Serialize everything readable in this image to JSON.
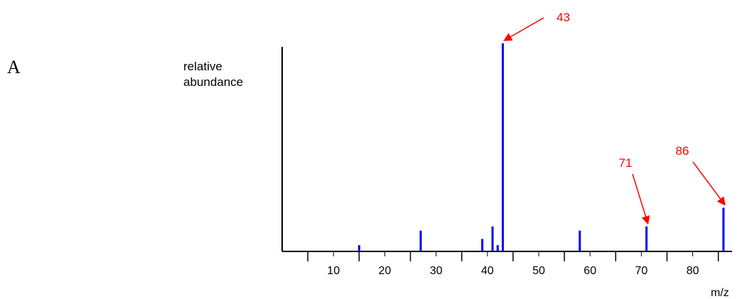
{
  "panel_label": "A",
  "chart_data": {
    "type": "bar",
    "title": "",
    "ylabel_lines": [
      "relative",
      "abundance"
    ],
    "xlabel": "m/z",
    "xlim": [
      0,
      86
    ],
    "ylim": [
      0,
      100
    ],
    "xticks": [
      10,
      20,
      30,
      40,
      50,
      60,
      70,
      80
    ],
    "x_minor_ticks": [
      5,
      15,
      25,
      35,
      45,
      55,
      65,
      75,
      85
    ],
    "x": [
      15,
      27,
      39,
      41,
      42,
      43,
      58,
      71,
      86
    ],
    "values": [
      3,
      10,
      6,
      12,
      3,
      100,
      10,
      12,
      21
    ],
    "annotations": [
      {
        "text": "43",
        "x": 43
      },
      {
        "text": "71",
        "x": 71
      },
      {
        "text": "86",
        "x": 86
      }
    ],
    "colors": {
      "bars": "#0000ff",
      "annotations": "#ff0000",
      "axes": "#000000"
    }
  }
}
